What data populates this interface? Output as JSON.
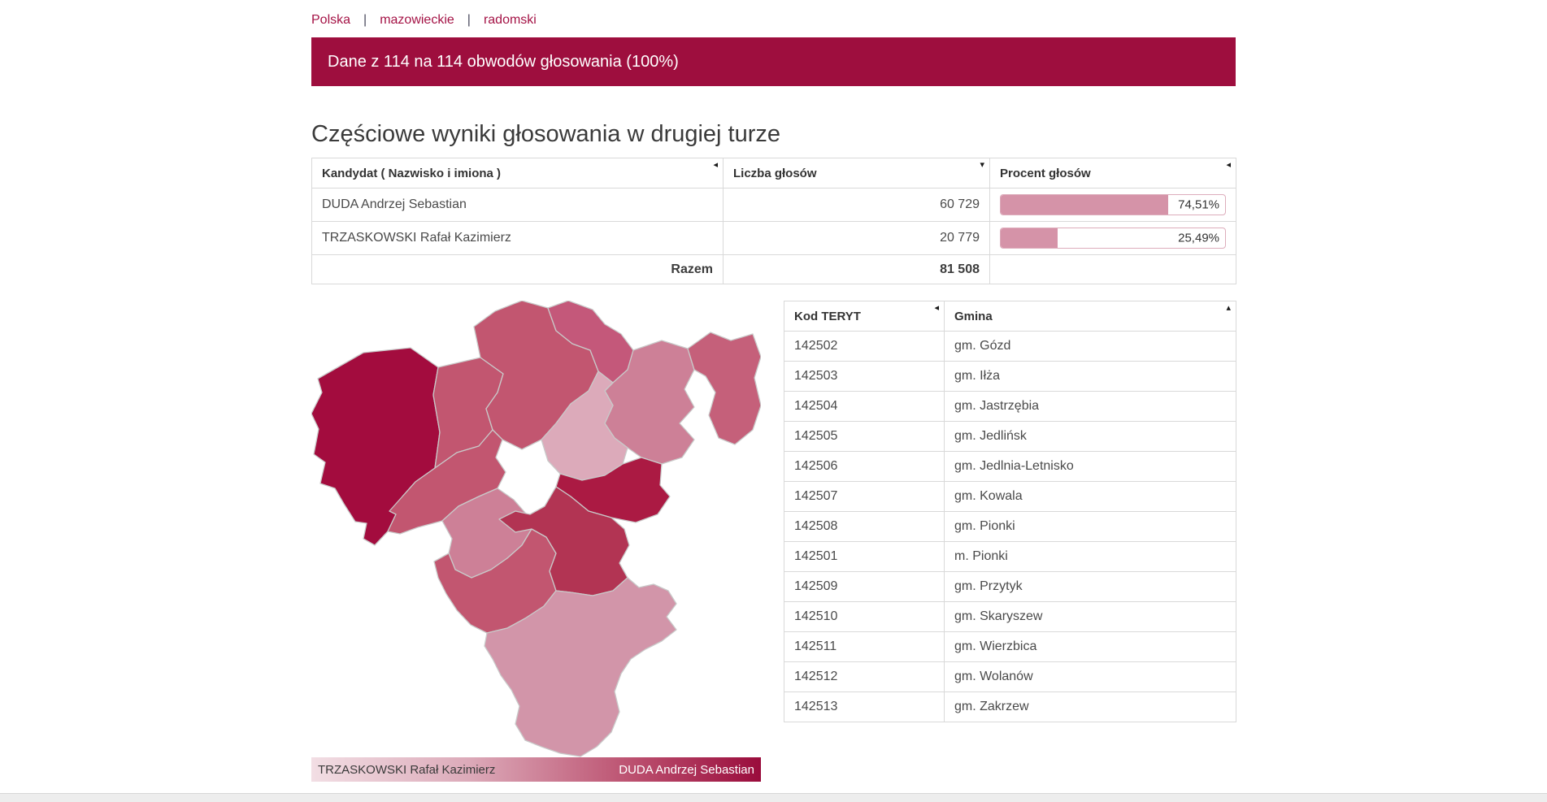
{
  "breadcrumb": {
    "separator": "|",
    "items": [
      {
        "label": "Polska"
      },
      {
        "label": "mazowieckie"
      },
      {
        "label": "radomski"
      }
    ]
  },
  "banner": {
    "text": "Dane z 114 na 114 obwodów głosowania (100%)"
  },
  "results": {
    "title": "Częściowe wyniki głosowania w drugiej turze",
    "columns": [
      {
        "label": "Kandydat ( Nazwisko i imiona )",
        "sort_icon": "◂"
      },
      {
        "label": "Liczba głosów",
        "sort_icon": "▾"
      },
      {
        "label": "Procent głosów",
        "sort_icon": "◂"
      }
    ],
    "rows": [
      {
        "candidate": "DUDA Andrzej Sebastian",
        "votes": "60 729",
        "percent": "74,51%",
        "percent_value": 74.51
      },
      {
        "candidate": "TRZASKOWSKI Rafał Kazimierz",
        "votes": "20 779",
        "percent": "25,49%",
        "percent_value": 25.49
      }
    ],
    "total_label": "Razem",
    "total_votes": "81 508"
  },
  "map": {
    "legend": {
      "left": "TRZASKOWSKI Rafał Kazimierz",
      "right": "DUDA Andrzej Sebastian"
    },
    "palette": {
      "darkest": "#a30c3e",
      "dark": "#ab1a43",
      "dark_rose": "#b23453",
      "rose": "#c25670",
      "light_rose": "#cd8097",
      "pale": "#d295a9",
      "lightest": "#dcaaba",
      "border": "#c9c9c9"
    }
  },
  "teryt_table": {
    "columns": [
      {
        "label": "Kod TERYT",
        "sort_icon": "◂"
      },
      {
        "label": "Gmina",
        "sort_icon": "▴"
      }
    ],
    "rows": [
      {
        "code": "142502",
        "gmina": "gm. Gózd"
      },
      {
        "code": "142503",
        "gmina": "gm. Iłża"
      },
      {
        "code": "142504",
        "gmina": "gm. Jastrzębia"
      },
      {
        "code": "142505",
        "gmina": "gm. Jedlińsk"
      },
      {
        "code": "142506",
        "gmina": "gm. Jedlnia-Letnisko"
      },
      {
        "code": "142507",
        "gmina": "gm. Kowala"
      },
      {
        "code": "142508",
        "gmina": "gm. Pionki"
      },
      {
        "code": "142501",
        "gmina": "m. Pionki"
      },
      {
        "code": "142509",
        "gmina": "gm. Przytyk"
      },
      {
        "code": "142510",
        "gmina": "gm. Skaryszew"
      },
      {
        "code": "142511",
        "gmina": "gm. Wierzbica"
      },
      {
        "code": "142512",
        "gmina": "gm. Wolanów"
      },
      {
        "code": "142513",
        "gmina": "gm. Zakrzew"
      }
    ]
  },
  "colors": {
    "accent": "#9e0e3e",
    "link": "#a41245",
    "bar_fill": "#d593a8",
    "bar_border": "#ddadbc"
  }
}
